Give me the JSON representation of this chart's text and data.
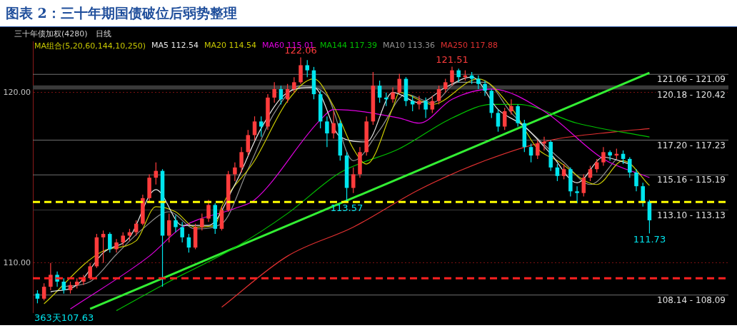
{
  "chart_data": {
    "type": "candlestick",
    "title": "图表 2：三十年期国债破位后弱势整理",
    "subtitle": "三十年债加权(4280)　日线",
    "legend_title": "MA组合(5,20,60,144,10,250)",
    "legend": "top",
    "grid": "y",
    "colors": [
      "#00e5ee",
      "#ff3c3c",
      "#ff3c3c",
      "#00e5ee",
      "#00e5ee",
      "#ff3c3c",
      "#ff3c3c",
      "#ff3c3c",
      "#ff3c3c",
      "#ff3c3c",
      "#ff3c3c",
      "#00e5ee",
      "#ff3c3c",
      "#ff3c3c",
      "#ff3c3c",
      "#ff3c3c",
      "#ff3c3c",
      "#ff3c3c",
      "#ff3c3c",
      "#00e5ee",
      "#ff3c3c",
      "#00e5ee",
      "#00e5ee",
      "#00e5ee",
      "#ff3c3c",
      "#ff3c3c",
      "#ff3c3c",
      "#00e5ee",
      "#ff3c3c",
      "#ff3c3c",
      "#ff3c3c",
      "#ff3c3c",
      "#ff3c3c",
      "#ff3c3c",
      "#00e5ee",
      "#ff3c3c",
      "#ff3c3c",
      "#00e5ee",
      "#ff3c3c",
      "#ff3c3c",
      "#ff3c3c",
      "#00e5ee",
      "#00e5ee",
      "#00e5ee",
      "#00e5ee",
      "#ff3c3c",
      "#00e5ee",
      "#00e5ee",
      "#ff3c3c",
      "#ff3c3c",
      "#ff3c3c",
      "#ff3c3c",
      "#00e5ee",
      "#00e5ee",
      "#ff3c3c",
      "#ff3c3c",
      "#00e5ee",
      "#00e5ee",
      "#ff3c3c",
      "#00e5ee",
      "#ff3c3c",
      "#ff3c3c",
      "#ff3c3c",
      "#ff3c3c",
      "#00e5ee",
      "#ff3c3c",
      "#00e5ee",
      "#00e5ee",
      "#00e5ee",
      "#00e5ee",
      "#00e5ee",
      "#ff3c3c",
      "#ff3c3c",
      "#00e5ee",
      "#00e5ee",
      "#00e5ee",
      "#ff3c3c",
      "#ff3c3c",
      "#00e5ee",
      "#00e5ee",
      "#ff3c3c",
      "#00e5ee",
      "#00e5ee",
      "#ff3c3c",
      "#ff3c3c",
      "#ff3c3c",
      "#ff3c3c",
      "#00e5ee",
      "#ff3c3c",
      "#00e5ee",
      "#00e5ee",
      "#00e5ee",
      "#00e5ee",
      "#00e5ee"
    ],
    "categories": [
      null,
      null,
      null,
      null,
      null,
      null,
      null,
      null,
      null,
      null,
      null,
      null,
      null,
      null,
      null,
      null,
      null,
      null,
      null,
      null,
      null,
      null,
      null,
      null,
      null,
      null,
      null,
      null,
      null,
      null,
      null,
      null,
      null,
      null,
      null,
      null,
      null,
      null,
      null,
      null,
      null,
      null,
      null,
      null,
      null,
      null,
      null,
      null,
      null,
      null,
      null,
      null,
      null,
      null,
      null,
      null,
      null,
      null,
      null,
      null,
      null,
      null,
      null,
      null,
      null,
      null,
      null,
      null,
      null,
      null,
      null,
      null,
      null,
      null,
      null,
      null,
      null,
      null,
      null,
      null,
      null,
      null,
      null,
      null,
      null,
      null,
      null,
      null,
      null,
      null,
      null,
      null,
      null,
      null
    ],
    "ohlc": [
      [
        108.2,
        108.4,
        107.63,
        107.9
      ],
      [
        107.9,
        108.8,
        107.8,
        108.6
      ],
      [
        108.6,
        110.0,
        108.4,
        109.3
      ],
      [
        109.3,
        109.5,
        108.6,
        108.9
      ],
      [
        108.9,
        109.1,
        108.2,
        108.4
      ],
      [
        108.4,
        108.9,
        108.2,
        108.7
      ],
      [
        108.7,
        109.1,
        108.5,
        108.9
      ],
      [
        108.9,
        109.3,
        108.7,
        109.1
      ],
      [
        109.1,
        110.0,
        109.0,
        109.8
      ],
      [
        109.8,
        111.7,
        109.7,
        111.5
      ],
      [
        111.5,
        111.9,
        110.0,
        111.7
      ],
      [
        111.7,
        111.8,
        110.6,
        110.8
      ],
      [
        110.8,
        111.4,
        110.6,
        111.2
      ],
      [
        111.2,
        111.8,
        111.0,
        111.6
      ],
      [
        111.6,
        112.0,
        111.3,
        111.8
      ],
      [
        111.8,
        112.5,
        111.6,
        112.3
      ],
      [
        112.3,
        114.0,
        112.2,
        113.8
      ],
      [
        113.8,
        115.2,
        113.6,
        115.0
      ],
      [
        115.0,
        115.9,
        114.6,
        115.4
      ],
      [
        115.4,
        115.5,
        108.6,
        111.6
      ],
      [
        111.6,
        112.9,
        111.2,
        112.5
      ],
      [
        112.5,
        112.8,
        111.8,
        112.1
      ],
      [
        112.1,
        112.4,
        111.2,
        111.5
      ],
      [
        111.5,
        111.7,
        110.6,
        110.9
      ],
      [
        110.9,
        112.3,
        110.8,
        112.1
      ],
      [
        112.1,
        112.9,
        111.9,
        112.6
      ],
      [
        112.6,
        113.7,
        112.4,
        113.4
      ],
      [
        113.4,
        113.5,
        111.7,
        112.0
      ],
      [
        112.0,
        113.3,
        111.9,
        113.1
      ],
      [
        113.1,
        115.4,
        113.0,
        115.2
      ],
      [
        115.2,
        115.9,
        114.8,
        115.6
      ],
      [
        115.6,
        116.8,
        115.3,
        116.5
      ],
      [
        116.5,
        117.8,
        116.3,
        117.5
      ],
      [
        117.5,
        118.6,
        117.2,
        118.3
      ],
      [
        118.3,
        118.6,
        117.4,
        118.0
      ],
      [
        118.0,
        119.9,
        117.8,
        119.7
      ],
      [
        119.7,
        120.6,
        119.4,
        120.2
      ],
      [
        120.2,
        120.4,
        119.3,
        119.6
      ],
      [
        119.6,
        120.5,
        119.4,
        120.2
      ],
      [
        120.2,
        120.9,
        120.0,
        120.6
      ],
      [
        120.6,
        122.06,
        120.5,
        121.6
      ],
      [
        121.6,
        121.9,
        120.9,
        121.3
      ],
      [
        121.3,
        121.5,
        119.6,
        119.9
      ],
      [
        119.9,
        120.1,
        117.9,
        118.3
      ],
      [
        118.3,
        118.6,
        116.8,
        117.6
      ],
      [
        117.6,
        118.9,
        117.3,
        118.2
      ],
      [
        118.2,
        118.4,
        116.0,
        116.3
      ],
      [
        116.3,
        116.5,
        113.57,
        114.4
      ],
      [
        114.4,
        115.6,
        114.1,
        115.2
      ],
      [
        115.2,
        116.8,
        115.0,
        116.5
      ],
      [
        116.5,
        118.6,
        116.3,
        118.3
      ],
      [
        118.3,
        121.2,
        118.1,
        120.4
      ],
      [
        120.4,
        120.7,
        119.4,
        119.7
      ],
      [
        119.7,
        120.0,
        119.2,
        119.6
      ],
      [
        119.6,
        120.3,
        119.4,
        120.0
      ],
      [
        120.0,
        121.1,
        119.9,
        120.8
      ],
      [
        120.8,
        120.9,
        119.2,
        119.5
      ],
      [
        119.5,
        119.8,
        118.9,
        119.3
      ],
      [
        119.3,
        119.8,
        119.0,
        119.5
      ],
      [
        119.5,
        119.7,
        118.5,
        119.0
      ],
      [
        119.0,
        119.8,
        118.8,
        119.5
      ],
      [
        119.5,
        120.4,
        119.3,
        120.2
      ],
      [
        120.2,
        120.8,
        120.0,
        120.6
      ],
      [
        120.6,
        121.51,
        120.4,
        121.3
      ],
      [
        121.3,
        121.4,
        120.6,
        120.9
      ],
      [
        120.9,
        121.3,
        120.7,
        121.0
      ],
      [
        121.0,
        121.2,
        120.5,
        120.8
      ],
      [
        120.8,
        121.0,
        120.2,
        120.5
      ],
      [
        120.5,
        120.7,
        119.8,
        120.1
      ],
      [
        120.1,
        120.2,
        118.5,
        118.8
      ],
      [
        118.8,
        119.0,
        117.7,
        118.0
      ],
      [
        118.0,
        119.1,
        117.8,
        118.9
      ],
      [
        118.9,
        119.6,
        118.7,
        119.2
      ],
      [
        119.2,
        119.3,
        118.0,
        118.2
      ],
      [
        118.2,
        118.4,
        116.5,
        116.8
      ],
      [
        116.8,
        117.0,
        115.9,
        116.3
      ],
      [
        116.3,
        117.2,
        116.1,
        117.0
      ],
      [
        117.0,
        117.4,
        116.6,
        117.1
      ],
      [
        117.1,
        117.2,
        115.4,
        115.6
      ],
      [
        115.6,
        115.8,
        114.8,
        115.1
      ],
      [
        115.1,
        115.8,
        114.9,
        115.5
      ],
      [
        115.5,
        115.6,
        113.9,
        114.2
      ],
      [
        114.2,
        114.5,
        113.5,
        114.1
      ],
      [
        114.1,
        115.2,
        113.9,
        115.0
      ],
      [
        115.0,
        115.7,
        114.8,
        115.5
      ],
      [
        115.5,
        116.1,
        115.3,
        115.9
      ],
      [
        115.9,
        116.8,
        115.7,
        116.5
      ],
      [
        116.5,
        116.6,
        116.0,
        116.3
      ],
      [
        116.3,
        116.7,
        116.1,
        116.4
      ],
      [
        116.4,
        116.6,
        115.8,
        116.1
      ],
      [
        116.1,
        116.2,
        115.0,
        115.3
      ],
      [
        115.3,
        115.5,
        114.2,
        114.5
      ],
      [
        114.5,
        114.7,
        113.3,
        113.6
      ],
      [
        113.6,
        113.7,
        111.73,
        112.5
      ]
    ],
    "series": [
      {
        "type": "line",
        "name": "MA5 112.54",
        "color": "#e6e6e6",
        "values": [
          null,
          null,
          108.3,
          null,
          null,
          null,
          108.7,
          null,
          null,
          null,
          110.6,
          null,
          null,
          null,
          111.5,
          null,
          null,
          null,
          114.3,
          null,
          null,
          null,
          112.2,
          null,
          null,
          null,
          112.2,
          null,
          null,
          null,
          114.6,
          null,
          null,
          null,
          117.9,
          null,
          null,
          null,
          120.0,
          null,
          null,
          null,
          120.3,
          null,
          null,
          null,
          117.4,
          null,
          null,
          null,
          117.1,
          null,
          null,
          null,
          120.0,
          null,
          null,
          null,
          119.4,
          null,
          null,
          null,
          120.3,
          null,
          null,
          null,
          120.9,
          null,
          null,
          null,
          119.0,
          null,
          null,
          null,
          118.0,
          null,
          null,
          null,
          116.4,
          null,
          null,
          null,
          114.7,
          null,
          null,
          null,
          116.2,
          null,
          null,
          null,
          115.8,
          null,
          null,
          null
        ]
      },
      {
        "type": "line",
        "name": "MA20 114.54",
        "color": "#c8c800",
        "values": [
          null,
          107.6,
          null,
          null,
          null,
          null,
          null,
          null,
          null,
          null,
          110.7,
          null,
          null,
          null,
          null,
          111.3,
          null,
          null,
          113.3,
          null,
          null,
          113.0,
          null,
          null,
          112.1,
          null,
          null,
          112.2,
          113.3,
          null,
          null,
          null,
          null,
          116.0,
          null,
          null,
          null,
          null,
          119.5,
          null,
          null,
          null,
          120.8,
          null,
          null,
          119.2,
          null,
          null,
          116.7,
          null,
          115.8,
          null,
          null,
          null,
          119.1,
          120.0,
          null,
          null,
          null,
          null,
          119.3,
          null,
          null,
          null,
          null,
          null,
          null,
          120.8,
          null,
          null,
          null,
          null,
          119.1,
          null,
          null,
          null,
          116.7,
          null,
          null,
          116.0,
          null,
          null,
          null,
          null,
          null,
          114.6,
          null,
          null,
          null,
          116.0,
          null,
          null,
          null,
          114.54
        ]
      },
      {
        "type": "line",
        "name": "MA60 115.01",
        "color": "#e000e0",
        "values": [
          null,
          null,
          null,
          null,
          null,
          107.3,
          null,
          null,
          null,
          null,
          null,
          null,
          null,
          null,
          null,
          null,
          null,
          110.4,
          null,
          null,
          null,
          null,
          112.1,
          null,
          null,
          null,
          null,
          null,
          null,
          null,
          113.2,
          null,
          null,
          113.7,
          null,
          null,
          null,
          null,
          null,
          null,
          null,
          null,
          null,
          118.4,
          null,
          119.0,
          null,
          null,
          null,
          null,
          null,
          null,
          null,
          null,
          null,
          118.5,
          null,
          null,
          118.2,
          null,
          null,
          null,
          null,
          119.6,
          null,
          null,
          null,
          null,
          null,
          120.2,
          null,
          null,
          null,
          null,
          null,
          null,
          null,
          118.9,
          null,
          null,
          null,
          null,
          null,
          null,
          null,
          null,
          116.1,
          null,
          null,
          null,
          null,
          null,
          null,
          115.01
        ]
      },
      {
        "type": "line",
        "name": "MA144 117.39",
        "color": "#00c000",
        "values": [
          null,
          null,
          null,
          null,
          null,
          null,
          null,
          null,
          null,
          null,
          null,
          null,
          107.2,
          null,
          null,
          null,
          null,
          null,
          null,
          null,
          108.9,
          null,
          null,
          null,
          null,
          null,
          null,
          null,
          null,
          null,
          110.9,
          null,
          null,
          null,
          null,
          null,
          null,
          null,
          112.9,
          null,
          null,
          null,
          null,
          null,
          null,
          null,
          115.3,
          null,
          null,
          null,
          null,
          null,
          null,
          null,
          null,
          116.7,
          null,
          null,
          null,
          null,
          null,
          null,
          null,
          118.5,
          null,
          null,
          null,
          null,
          null,
          119.3,
          null,
          null,
          null,
          119.3,
          null,
          null,
          null,
          null,
          null,
          null,
          null,
          null,
          118.2,
          null,
          null,
          null,
          null,
          null,
          null,
          null,
          null,
          null,
          null,
          117.39
        ]
      },
      {
        "type": "line",
        "name": "MA10 113.36",
        "color": "#909090",
        "values": [
          null,
          null,
          null,
          null,
          108.6,
          null,
          null,
          null,
          108.9,
          null,
          null,
          null,
          110.5,
          null,
          null,
          null,
          112.0,
          null,
          null,
          null,
          113.0,
          null,
          null,
          null,
          112.0,
          null,
          null,
          null,
          112.3,
          null,
          null,
          null,
          115.5,
          null,
          null,
          null,
          118.8,
          null,
          null,
          null,
          120.4,
          null,
          null,
          null,
          119.8,
          null,
          null,
          null,
          116.0,
          null,
          null,
          null,
          117.8,
          null,
          null,
          null,
          119.9,
          null,
          null,
          null,
          119.4,
          null,
          null,
          null,
          120.6,
          null,
          null,
          null,
          120.6,
          null,
          null,
          null,
          118.8,
          null,
          null,
          null,
          117.3,
          null,
          null,
          null,
          115.9,
          null,
          null,
          null,
          114.6,
          null,
          null,
          null,
          116.1,
          null,
          null,
          null,
          null,
          null
        ]
      },
      {
        "type": "line",
        "name": "MA250 117.88",
        "color": "#e03030",
        "values": [
          null,
          null,
          null,
          null,
          null,
          null,
          null,
          null,
          null,
          null,
          null,
          null,
          null,
          null,
          null,
          null,
          null,
          null,
          null,
          null,
          null,
          null,
          null,
          null,
          null,
          null,
          null,
          null,
          107.4,
          null,
          null,
          null,
          null,
          null,
          null,
          null,
          null,
          null,
          110.4,
          null,
          null,
          null,
          null,
          null,
          null,
          null,
          null,
          null,
          112.1,
          null,
          null,
          null,
          null,
          null,
          null,
          null,
          null,
          null,
          114.3,
          null,
          null,
          null,
          null,
          null,
          null,
          null,
          null,
          null,
          116.0,
          null,
          null,
          null,
          null,
          null,
          null,
          null,
          null,
          null,
          117.2,
          null,
          null,
          null,
          null,
          null,
          null,
          null,
          null,
          null,
          117.7,
          null,
          null,
          null,
          null,
          117.88
        ]
      },
      {
        "type": "line",
        "color": "#33ee33",
        "values": [
          null,
          null,
          null,
          null,
          null,
          null,
          null,
          null,
          107.3,
          null,
          null,
          null,
          null,
          null,
          null,
          null,
          null,
          null,
          null,
          null,
          null,
          null,
          null,
          null,
          null,
          null,
          null,
          null,
          null,
          null,
          null,
          null,
          null,
          null,
          null,
          null,
          null,
          null,
          null,
          null,
          null,
          null,
          null,
          null,
          null,
          null,
          null,
          null,
          null,
          null,
          null,
          null,
          null,
          null,
          null,
          null,
          null,
          null,
          null,
          null,
          null,
          null,
          null,
          null,
          null,
          null,
          null,
          null,
          null,
          null,
          null,
          null,
          null,
          null,
          null,
          null,
          null,
          null,
          null,
          null,
          null,
          null,
          null,
          null,
          null,
          null,
          null,
          null,
          null,
          null,
          null,
          null,
          null,
          121.15
        ]
      }
    ],
    "ylim": [
      107.1,
      123.0
    ],
    "yticks": [
      {
        "value": 110,
        "label": "110.00"
      },
      {
        "value": 120,
        "label": "120.00"
      }
    ],
    "ref_lines": [
      {
        "axis": "y",
        "value": 113.57,
        "color": "#ffff00",
        "line_style": "dashed"
      },
      {
        "axis": "y",
        "value": 109.1,
        "color": "#ff2020",
        "line_style": "dashed"
      }
    ],
    "bands": [
      {
        "axis": "y",
        "from": 121.06,
        "to": 121.09,
        "label": "121.06 - 121.09",
        "color": "#707070"
      },
      {
        "axis": "y",
        "from": 120.18,
        "to": 120.42,
        "label": "120.18 - 120.42",
        "color": "#3a3a3a"
      },
      {
        "axis": "y",
        "from": 117.2,
        "to": 117.23,
        "label": "117.20 - 117.23",
        "color": "#707070"
      },
      {
        "axis": "y",
        "from": 115.16,
        "to": 115.19,
        "label": "115.16 - 115.19",
        "color": "#707070"
      },
      {
        "axis": "y",
        "from": 113.1,
        "to": 113.13,
        "label": "113.10 - 113.13",
        "color": "#3a3a3a"
      },
      {
        "axis": "y",
        "from": 108.09,
        "to": 108.14,
        "label": "108.14 - 108.09",
        "color": "#707070"
      }
    ],
    "annotations": [
      {
        "text": "122.06",
        "y": 122.06
      },
      {
        "text": "121.51",
        "y": 121.51
      },
      {
        "text": "113.57",
        "y": 113.57
      },
      {
        "text": "111.73",
        "y": 111.73
      },
      "363天107.63"
    ]
  }
}
